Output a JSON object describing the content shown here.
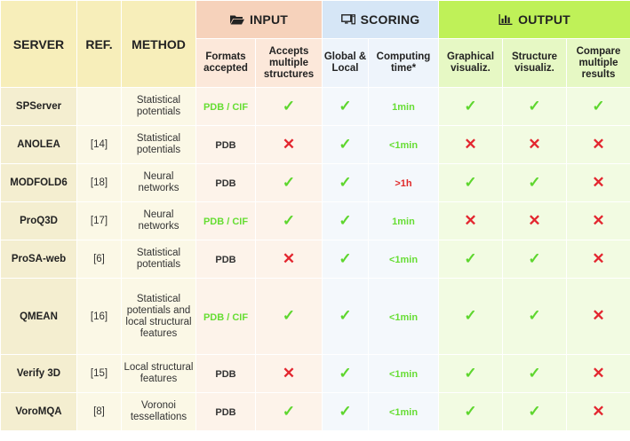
{
  "headers": {
    "server": "SERVER",
    "ref": "REF.",
    "method": "METHOD",
    "groups": {
      "input": "INPUT",
      "scoring": "SCORING",
      "output": "OUTPUT"
    },
    "sub": {
      "formats": "Formats accepted",
      "accepts_multiple": "Accepts multiple structures",
      "global_local": "Global & Local",
      "computing_time": "Computing time*",
      "graphical": "Graphical visualiz.",
      "structure": "Structure visualiz.",
      "compare": "Compare multiple results"
    },
    "group_icons": {
      "input": "folder-icon",
      "scoring": "computer-icon",
      "output": "bar-chart-icon"
    }
  },
  "colors": {
    "yes": "#5ed62e",
    "no": "#e3262f",
    "green_text": "#66dd33",
    "red_text": "#e02a2a"
  },
  "rows": [
    {
      "server": "SPServer",
      "ref": "",
      "method": "Statistical potentials",
      "formats": "PDB / CIF",
      "formats_color": "green",
      "multiple": "yes",
      "global_local": "yes",
      "time": "1min",
      "time_color": "green",
      "graphical": "yes",
      "structure": "yes",
      "compare": "yes"
    },
    {
      "server": "ANOLEA",
      "ref": "[14]",
      "method": "Statistical potentials",
      "formats": "PDB",
      "formats_color": "dark",
      "multiple": "no",
      "global_local": "yes",
      "time": "<1min",
      "time_color": "green",
      "graphical": "no",
      "structure": "no",
      "compare": "no"
    },
    {
      "server": "MODFOLD6",
      "ref": "[18]",
      "method": "Neural networks",
      "formats": "PDB",
      "formats_color": "dark",
      "multiple": "yes",
      "global_local": "yes",
      "time": ">1h",
      "time_color": "red",
      "graphical": "yes",
      "structure": "yes",
      "compare": "no"
    },
    {
      "server": "ProQ3D",
      "ref": "[17]",
      "method": "Neural networks",
      "formats": "PDB / CIF",
      "formats_color": "green",
      "multiple": "yes",
      "global_local": "yes",
      "time": "1min",
      "time_color": "green",
      "graphical": "no",
      "structure": "no",
      "compare": "no"
    },
    {
      "server": "ProSA-web",
      "ref": "[6]",
      "method": "Statistical potentials",
      "formats": "PDB",
      "formats_color": "dark",
      "multiple": "no",
      "global_local": "yes",
      "time": "<1min",
      "time_color": "green",
      "graphical": "yes",
      "structure": "yes",
      "compare": "no"
    },
    {
      "server": "QMEAN",
      "ref": "[16]",
      "method": "Statistical potentials and local structural features",
      "formats": "PDB / CIF",
      "formats_color": "green",
      "multiple": "yes",
      "global_local": "yes",
      "time": "<1min",
      "time_color": "green",
      "graphical": "yes",
      "structure": "yes",
      "compare": "no"
    },
    {
      "server": "Verify 3D",
      "ref": "[15]",
      "method": "Local structural features",
      "formats": "PDB",
      "formats_color": "dark",
      "multiple": "no",
      "global_local": "yes",
      "time": "<1min",
      "time_color": "green",
      "graphical": "yes",
      "structure": "yes",
      "compare": "no"
    },
    {
      "server": "VoroMQA",
      "ref": "[8]",
      "method": "Voronoi tessellations",
      "formats": "PDB",
      "formats_color": "dark",
      "multiple": "yes",
      "global_local": "yes",
      "time": "<1min",
      "time_color": "green",
      "graphical": "yes",
      "structure": "yes",
      "compare": "no"
    }
  ]
}
